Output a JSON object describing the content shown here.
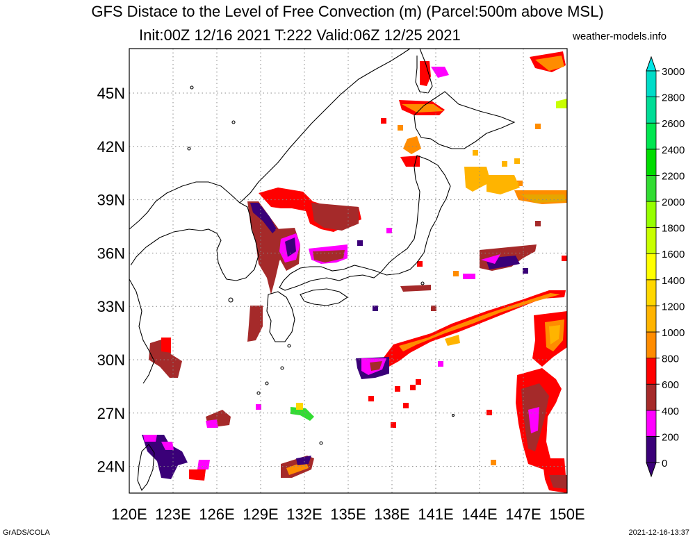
{
  "title_line1": "GFS Distace to the Level of Free Convection (m) (Parcel:500m above MSL)",
  "title_line2": "Init:00Z 12/16 2021 T:222 Valid:06Z 12/25 2021",
  "site": "weather-models.info",
  "footer_left": "GrADS/COLA",
  "footer_right": "2021-12-16-13:37",
  "map": {
    "lon_range": [
      120,
      150
    ],
    "lat_range": [
      22.5,
      47.5
    ],
    "lon_ticks": [
      "120E",
      "123E",
      "126E",
      "129E",
      "132E",
      "135E",
      "138E",
      "141E",
      "144E",
      "147E",
      "150E"
    ],
    "lat_ticks": [
      "24N",
      "27N",
      "30N",
      "33N",
      "36N",
      "39N",
      "42N",
      "45N"
    ],
    "grid": "dotted"
  },
  "colorbar": {
    "labels": [
      "0",
      "200",
      "400",
      "600",
      "800",
      "1000",
      "1200",
      "1400",
      "1600",
      "1800",
      "2000",
      "2200",
      "2400",
      "2600",
      "2800",
      "3000"
    ],
    "colors": [
      "#3a0078",
      "#ff00ff",
      "#a52a2a",
      "#ff0000",
      "#ff8c00",
      "#ffb400",
      "#ffd700",
      "#ffff00",
      "#c8ff00",
      "#96ff00",
      "#32dc32",
      "#00dc00",
      "#00e650",
      "#00dc96",
      "#00dcc8",
      "#00e6e6"
    ]
  }
}
